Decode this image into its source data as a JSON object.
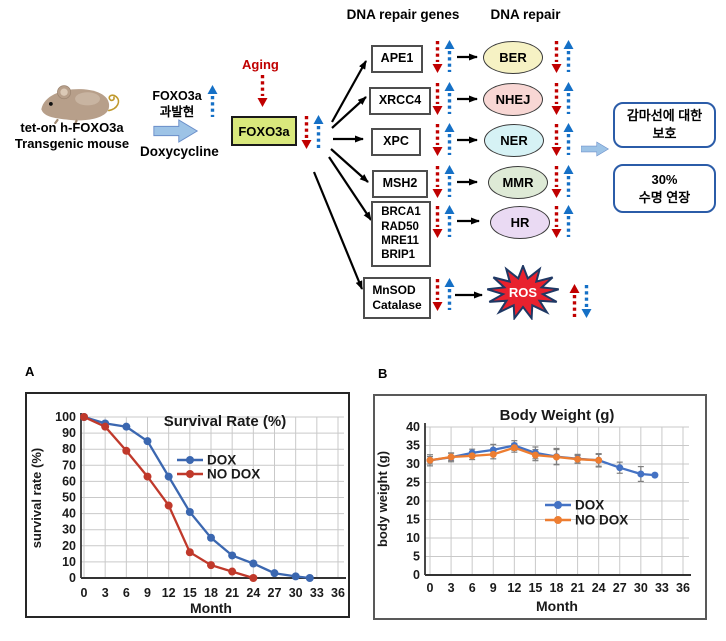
{
  "diagram": {
    "mouse_caption": "tet-on h-FOXO3a\nTransgenic mouse",
    "foxo3a_induction": "FOXO3a\n과발현",
    "doxycycline_label": "Doxycycline",
    "aging_label": "Aging",
    "foxo3a_box_label": "FOXO3a",
    "headers": {
      "genes": "DNA repair genes",
      "repair": "DNA repair"
    },
    "rows": [
      {
        "gene": "APE1",
        "pathway": "BER"
      },
      {
        "gene": "XRCC4",
        "pathway": "NHEJ"
      },
      {
        "gene": "XPC",
        "pathway": "NER"
      },
      {
        "gene": "MSH2",
        "pathway": "MMR"
      },
      {
        "gene": "BRCA1\nRAD50\nMRE11\nBRIP1",
        "pathway": "HR"
      },
      {
        "gene": "MnSOD\nCatalase",
        "pathway": "ROS"
      }
    ],
    "outcomes": [
      "감마선에 대한\n보호",
      "30%\n수명 연장"
    ],
    "colors": {
      "arrow_red": "#C00000",
      "arrow_blue": "#1570C6",
      "foxo3a_fill": "#D9E87C",
      "block_arrow": "#9DC3E6",
      "outcome_border": "#2B5CA8",
      "pathway_fills": {
        "BER": "#F6F2C4",
        "NHEJ": "#F8D7D4",
        "NER": "#D6F2F5",
        "MMR": "#DEEAD6",
        "HR": "#EADAF3"
      },
      "ros_fill": "#E8212E",
      "ros_border": "#1F3864"
    }
  },
  "panels": {
    "a": "A",
    "b": "B"
  },
  "chart_data": [
    {
      "type": "line",
      "panel": "A",
      "title": "Survival Rate (%)",
      "xlabel": "Month",
      "ylabel": "survival rate (%)",
      "xlim": [
        0,
        36
      ],
      "xtick_step": 3,
      "ylim": [
        0,
        100
      ],
      "ytick_step": 10,
      "grid": true,
      "legend_position": "inside-upper-right",
      "series": [
        {
          "name": "DOX",
          "color": "#3B67B0",
          "points": [
            [
              0,
              100
            ],
            [
              3,
              96
            ],
            [
              6,
              94
            ],
            [
              9,
              85
            ],
            [
              12,
              63
            ],
            [
              15,
              41
            ],
            [
              18,
              25
            ],
            [
              21,
              14
            ],
            [
              24,
              9
            ],
            [
              27,
              3
            ],
            [
              30,
              1
            ],
            [
              32,
              0
            ]
          ]
        },
        {
          "name": "NO DOX",
          "color": "#C0392B",
          "points": [
            [
              0,
              100
            ],
            [
              3,
              94
            ],
            [
              6,
              79
            ],
            [
              9,
              63
            ],
            [
              12,
              45
            ],
            [
              15,
              16
            ],
            [
              18,
              8
            ],
            [
              21,
              4
            ],
            [
              24,
              0
            ]
          ]
        }
      ]
    },
    {
      "type": "line",
      "panel": "B",
      "title": "Body Weight (g)",
      "xlabel": "Month",
      "ylabel": "body weight (g)",
      "xlim": [
        0,
        36
      ],
      "xtick_step": 3,
      "ylim": [
        0,
        40
      ],
      "ytick_step": 5,
      "grid": true,
      "legend_position": "inside-middle-right",
      "error_bar_color": "#7F7F7F",
      "series": [
        {
          "name": "DOX",
          "color": "#4472C4",
          "points": [
            [
              0,
              31
            ],
            [
              3,
              31.8
            ],
            [
              6,
              33
            ],
            [
              9,
              33.8
            ],
            [
              12,
              35
            ],
            [
              15,
              33
            ],
            [
              18,
              32
            ],
            [
              21,
              31.4
            ],
            [
              24,
              31
            ],
            [
              27,
              29
            ],
            [
              30,
              27.3
            ],
            [
              32,
              27
            ]
          ],
          "errors": [
            1.5,
            1.2,
            1.0,
            1.5,
            1.3,
            1.6,
            2.2,
            1.2,
            1.8,
            1.5,
            2.0,
            0
          ]
        },
        {
          "name": "NO DOX",
          "color": "#ED7D31",
          "points": [
            [
              0,
              31
            ],
            [
              3,
              31.9
            ],
            [
              6,
              32.2
            ],
            [
              9,
              32.6
            ],
            [
              12,
              34.4
            ],
            [
              15,
              32.4
            ],
            [
              18,
              31.9
            ],
            [
              21,
              31.3
            ],
            [
              24,
              31
            ]
          ],
          "errors": [
            1.0,
            1.0,
            1.0,
            1.2,
            1.2,
            1.5,
            2.0,
            1.0,
            1.6
          ]
        }
      ]
    }
  ]
}
